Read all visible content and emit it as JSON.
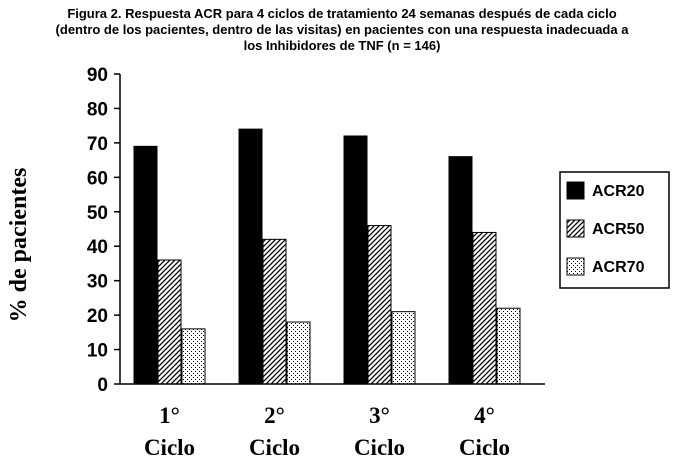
{
  "chart_data": {
    "type": "bar",
    "title": "Figura 2. Respuesta ACR para 4 ciclos de tratamiento 24 semanas después de cada ciclo (dentro de los pacientes, dentro de las visitas) en pacientes con una respuesta inadecuada a los Inhibidores de TNF (n = 146)",
    "title_lines": [
      "Figura 2. Respuesta ACR para 4 ciclos de tratamiento 24 semanas después de cada ciclo",
      "(dentro de los pacientes, dentro de las visitas) en pacientes con una respuesta inadecuada a",
      "los Inhibidores de TNF (n = 146)"
    ],
    "categories": [
      {
        "num": "1°",
        "word": "Ciclo"
      },
      {
        "num": "2°",
        "word": "Ciclo"
      },
      {
        "num": "3°",
        "word": "Ciclo"
      },
      {
        "num": "4°",
        "word": "Ciclo"
      }
    ],
    "series": [
      {
        "name": "ACR20",
        "values": [
          69,
          74,
          72,
          66
        ],
        "pattern": "solid",
        "color": "#000000"
      },
      {
        "name": "ACR50",
        "values": [
          36,
          42,
          46,
          44
        ],
        "pattern": "diagonal-hatch",
        "color": "#000000"
      },
      {
        "name": "ACR70",
        "values": [
          16,
          18,
          21,
          22
        ],
        "pattern": "dots",
        "color": "#000000"
      }
    ],
    "ylabel": "% de pacientes",
    "xlabel": "",
    "ylim": [
      0,
      90
    ],
    "yticks": [
      0,
      10,
      20,
      30,
      40,
      50,
      60,
      70,
      80,
      90
    ],
    "grid": false,
    "legend_position": "right"
  }
}
